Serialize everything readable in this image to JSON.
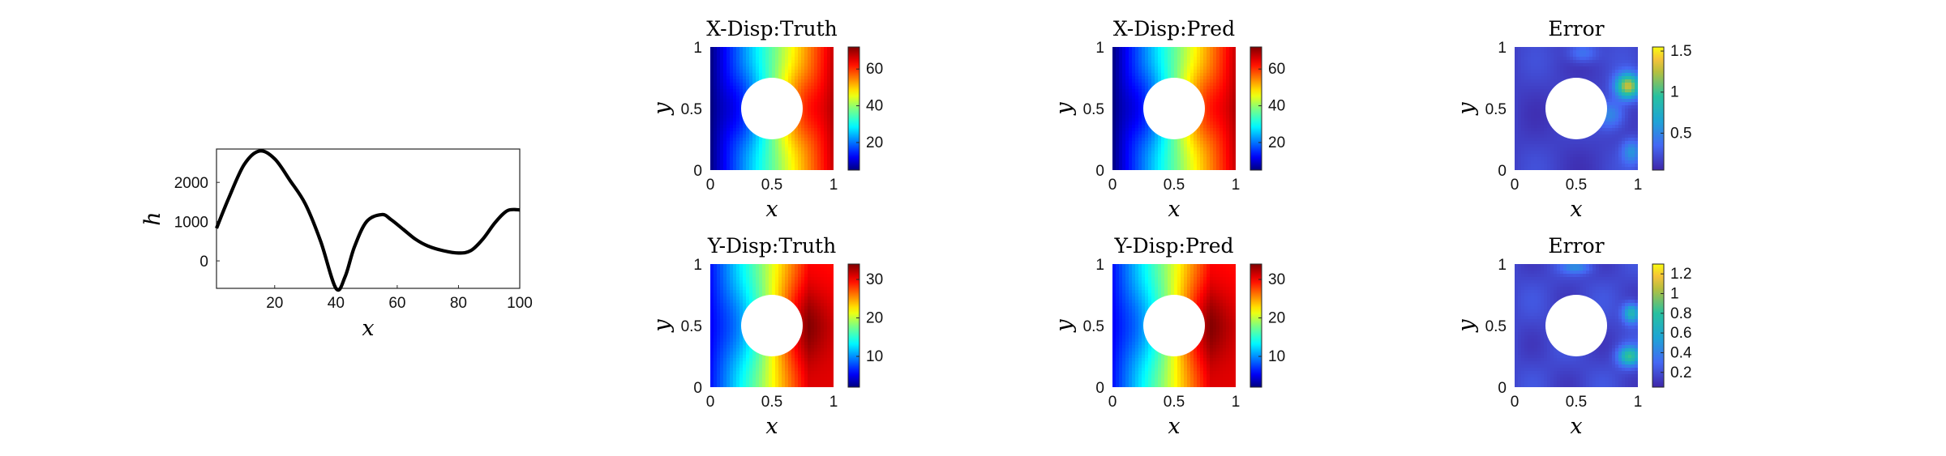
{
  "chart_data": [
    {
      "id": "load",
      "type": "line",
      "title": "",
      "xlabel": "x",
      "ylabel": "h",
      "xlim": [
        1,
        100
      ],
      "ylim": [
        -700,
        2850
      ],
      "xticks": [
        20,
        40,
        60,
        80,
        100
      ],
      "yticks": [
        0,
        1000,
        2000
      ],
      "x": [
        1,
        5,
        10,
        15,
        20,
        25,
        30,
        35,
        40,
        43,
        46,
        50,
        55,
        58,
        62,
        66,
        70,
        75,
        80,
        84,
        88,
        92,
        96,
        100
      ],
      "y": [
        830,
        1600,
        2450,
        2800,
        2600,
        2050,
        1450,
        500,
        -700,
        -400,
        350,
        1000,
        1180,
        1050,
        800,
        550,
        380,
        260,
        200,
        260,
        560,
        980,
        1280,
        1300
      ],
      "color": "#000000"
    },
    {
      "id": "xdisp-truth",
      "type": "heatmap",
      "title": "X-Disp:Truth",
      "xlabel": "x",
      "ylabel": "y",
      "xlim": [
        0,
        1
      ],
      "ylim": [
        0,
        1
      ],
      "xticks": [
        "0",
        "0.5",
        "1"
      ],
      "yticks": [
        "0",
        "0.5",
        "1"
      ],
      "colormap": "jet",
      "clim": [
        5,
        72
      ],
      "cbar_ticks": [
        20,
        40,
        60
      ],
      "hole": {
        "cx": 0.5,
        "cy": 0.5,
        "r": 0.25
      }
    },
    {
      "id": "xdisp-pred",
      "type": "heatmap",
      "title": "X-Disp:Pred",
      "xlabel": "x",
      "ylabel": "y",
      "xlim": [
        0,
        1
      ],
      "ylim": [
        0,
        1
      ],
      "xticks": [
        "0",
        "0.5",
        "1"
      ],
      "yticks": [
        "0",
        "0.5",
        "1"
      ],
      "colormap": "jet",
      "clim": [
        5,
        72
      ],
      "cbar_ticks": [
        20,
        40,
        60
      ],
      "hole": {
        "cx": 0.5,
        "cy": 0.5,
        "r": 0.25
      }
    },
    {
      "id": "xdisp-error",
      "type": "heatmap",
      "title": "Error",
      "xlabel": "x",
      "ylabel": "y",
      "xlim": [
        0,
        1
      ],
      "ylim": [
        0,
        1
      ],
      "xticks": [
        "0",
        "0.5",
        "1"
      ],
      "yticks": [
        "0",
        "0.5",
        "1"
      ],
      "colormap": "parula",
      "clim": [
        0.05,
        1.55
      ],
      "cbar_ticks": [
        0.5,
        1,
        1.5
      ],
      "hole": {
        "cx": 0.5,
        "cy": 0.5,
        "r": 0.25
      }
    },
    {
      "id": "ydisp-truth",
      "type": "heatmap",
      "title": "Y-Disp:Truth",
      "xlabel": "x",
      "ylabel": "y",
      "xlim": [
        0,
        1
      ],
      "ylim": [
        0,
        1
      ],
      "xticks": [
        "0",
        "0.5",
        "1"
      ],
      "yticks": [
        "0",
        "0.5",
        "1"
      ],
      "colormap": "jet",
      "clim": [
        2,
        34
      ],
      "cbar_ticks": [
        10,
        20,
        30
      ],
      "hole": {
        "cx": 0.5,
        "cy": 0.5,
        "r": 0.25
      }
    },
    {
      "id": "ydisp-pred",
      "type": "heatmap",
      "title": "Y-Disp:Pred",
      "xlabel": "x",
      "ylabel": "y",
      "xlim": [
        0,
        1
      ],
      "ylim": [
        0,
        1
      ],
      "xticks": [
        "0",
        "0.5",
        "1"
      ],
      "yticks": [
        "0",
        "0.5",
        "1"
      ],
      "colormap": "jet",
      "clim": [
        2,
        34
      ],
      "cbar_ticks": [
        10,
        20,
        30
      ],
      "hole": {
        "cx": 0.5,
        "cy": 0.5,
        "r": 0.25
      }
    },
    {
      "id": "ydisp-error",
      "type": "heatmap",
      "title": "Error",
      "xlabel": "x",
      "ylabel": "y",
      "xlim": [
        0,
        1
      ],
      "ylim": [
        0,
        1
      ],
      "xticks": [
        "0",
        "0.5",
        "1"
      ],
      "yticks": [
        "0",
        "0.5",
        "1"
      ],
      "colormap": "parula",
      "clim": [
        0.05,
        1.3
      ],
      "cbar_ticks": [
        0.2,
        0.4,
        0.6,
        0.8,
        1,
        1.2
      ],
      "hole": {
        "cx": 0.5,
        "cy": 0.5,
        "r": 0.25
      }
    }
  ]
}
